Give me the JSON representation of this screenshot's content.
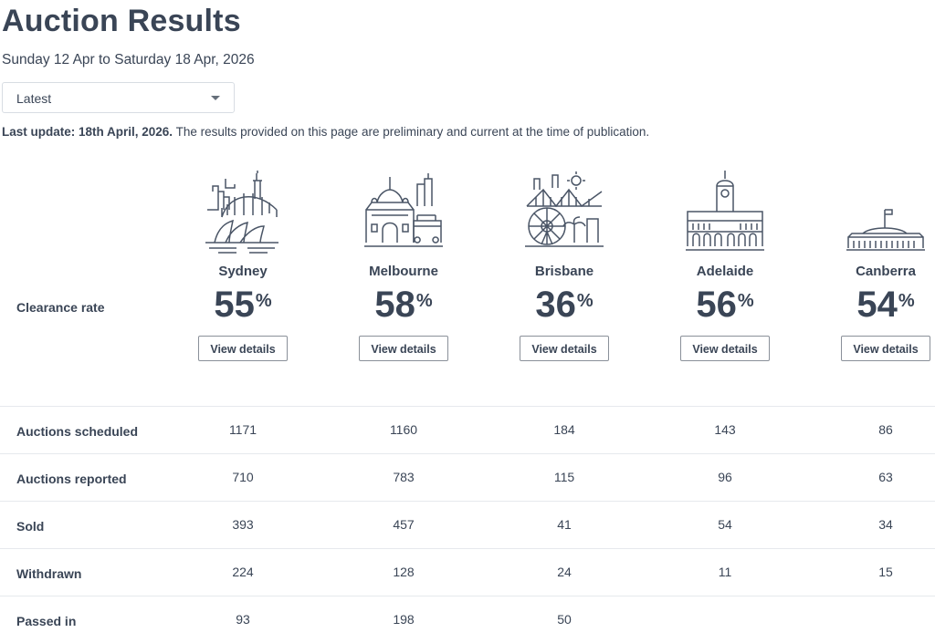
{
  "header": {
    "title": "Auction Results",
    "date_range": "Sunday 12 Apr to Saturday 18 Apr, 2026",
    "period_select": {
      "value": "Latest"
    },
    "last_update_label": "Last update: 18th April, 2026.",
    "disclaimer": " The results provided on this page are preliminary and current at the time of publication."
  },
  "clearance": {
    "label": "Clearance rate",
    "percent_symbol": "%",
    "button_label": "View details"
  },
  "cities": [
    {
      "name": "Sydney",
      "rate": "55",
      "icon": "sydney-skyline-icon"
    },
    {
      "name": "Melbourne",
      "rate": "58",
      "icon": "melbourne-skyline-icon"
    },
    {
      "name": "Brisbane",
      "rate": "36",
      "icon": "brisbane-skyline-icon"
    },
    {
      "name": "Adelaide",
      "rate": "56",
      "icon": "adelaide-skyline-icon"
    },
    {
      "name": "Canberra",
      "rate": "54",
      "icon": "canberra-skyline-icon"
    }
  ],
  "stats": {
    "rows": [
      {
        "label": "Auctions scheduled",
        "values": [
          "1171",
          "1160",
          "184",
          "143",
          "86"
        ]
      },
      {
        "label": "Auctions reported",
        "values": [
          "710",
          "783",
          "115",
          "96",
          "63"
        ]
      },
      {
        "label": "Sold",
        "values": [
          "393",
          "457",
          "41",
          "54",
          "34"
        ]
      },
      {
        "label": "Withdrawn",
        "values": [
          "224",
          "128",
          "24",
          "11",
          "15"
        ]
      },
      {
        "label": "Passed in",
        "values": [
          "93",
          "198",
          "50",
          "",
          ""
        ]
      }
    ]
  }
}
